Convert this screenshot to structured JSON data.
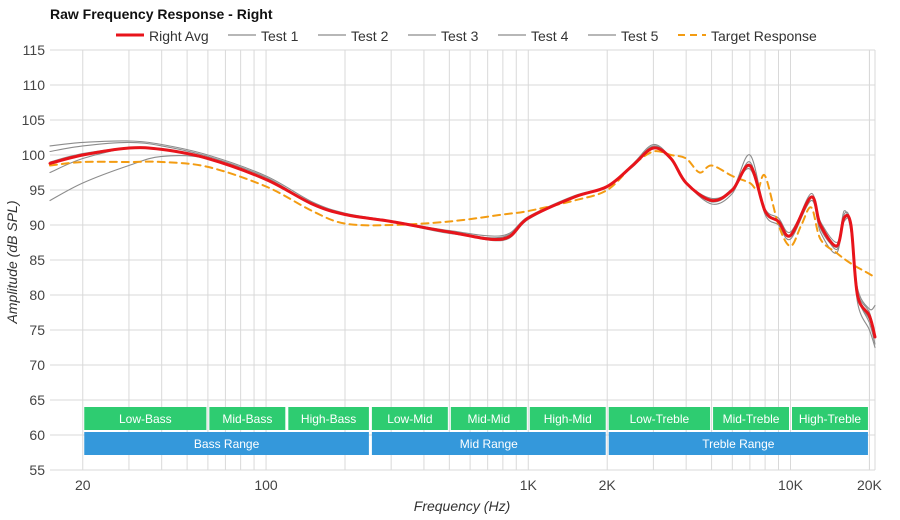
{
  "chart_data": {
    "type": "line",
    "title": "Raw Frequency Response - Right",
    "xlabel": "Frequency (Hz)",
    "ylabel": "Amplitude (dB SPL)",
    "x_scale": "log",
    "xlim": [
      15,
      21000
    ],
    "ylim": [
      55,
      115
    ],
    "grid": true,
    "legend_position": "top-center",
    "y_ticks": [
      115,
      110,
      105,
      100,
      95,
      90,
      85,
      80,
      75,
      70,
      65,
      60,
      55
    ],
    "x_ticks": [
      {
        "value": 20,
        "label": "20"
      },
      {
        "value": 100,
        "label": "100"
      },
      {
        "value": 1000,
        "label": "1K"
      },
      {
        "value": 2000,
        "label": "2K"
      },
      {
        "value": 10000,
        "label": "10K"
      },
      {
        "value": 20000,
        "label": "20K"
      }
    ],
    "series": [
      {
        "name": "Right Avg",
        "color": "#e8141b",
        "style": "solid",
        "emphasis": true,
        "x": [
          15,
          20,
          30,
          40,
          60,
          100,
          150,
          200,
          300,
          500,
          800,
          1000,
          1500,
          2000,
          2500,
          3000,
          3500,
          4000,
          5000,
          6000,
          7000,
          8000,
          9000,
          10000,
          12000,
          13000,
          15000,
          16000,
          17000,
          18000,
          20000,
          21000
        ],
        "y": [
          98.8,
          100.0,
          101.0,
          100.8,
          99.5,
          96.5,
          93.0,
          91.5,
          90.5,
          89.0,
          88.0,
          91.0,
          94.0,
          95.5,
          98.5,
          101.0,
          99.5,
          96.0,
          93.5,
          95.0,
          98.5,
          92.0,
          90.5,
          88.5,
          94.0,
          90.0,
          87.0,
          91.0,
          90.0,
          80.0,
          77.0,
          74.0
        ]
      },
      {
        "name": "Test 1",
        "color": "#8c8c8c",
        "style": "solid",
        "x": [
          15,
          20,
          30,
          40,
          60,
          100,
          150,
          200,
          300,
          500,
          800,
          1000,
          1500,
          2000,
          2500,
          3000,
          3500,
          4000,
          5000,
          6000,
          7000,
          8000,
          9000,
          10000,
          12000,
          13000,
          15000,
          16000,
          17000,
          18000,
          20000,
          21000
        ],
        "y": [
          97.5,
          99.5,
          101.0,
          100.8,
          99.5,
          96.5,
          93.0,
          91.5,
          90.5,
          89.0,
          88.2,
          91.0,
          94.0,
          95.5,
          98.5,
          101.3,
          99.5,
          96.0,
          93.3,
          95.0,
          100.0,
          92.0,
          90.5,
          88.5,
          94.5,
          89.5,
          87.0,
          92.0,
          89.0,
          80.0,
          76.0,
          73.0
        ]
      },
      {
        "name": "Test 2",
        "color": "#8c8c8c",
        "style": "solid",
        "x": [
          15,
          20,
          30,
          40,
          60,
          100,
          150,
          200,
          300,
          500,
          800,
          1000,
          1500,
          2000,
          2500,
          3000,
          3500,
          4000,
          5000,
          6000,
          7000,
          8000,
          9000,
          10000,
          12000,
          13000,
          15000,
          16000,
          17000,
          18000,
          20000,
          21000
        ],
        "y": [
          100.5,
          101.3,
          101.8,
          101.3,
          99.8,
          96.8,
          93.0,
          91.5,
          90.5,
          88.8,
          88.3,
          91.0,
          94.0,
          95.5,
          98.7,
          101.5,
          99.5,
          96.0,
          93.5,
          95.2,
          98.0,
          92.0,
          90.5,
          88.5,
          93.5,
          90.0,
          86.5,
          91.0,
          89.5,
          80.5,
          77.5,
          74.0
        ]
      },
      {
        "name": "Test 3",
        "color": "#8c8c8c",
        "style": "solid",
        "x": [
          15,
          20,
          30,
          40,
          60,
          100,
          150,
          200,
          300,
          500,
          800,
          1000,
          1500,
          2000,
          2500,
          3000,
          3500,
          4000,
          5000,
          6000,
          7000,
          8000,
          9000,
          10000,
          12000,
          13000,
          15000,
          16000,
          17000,
          18000,
          20000,
          21000
        ],
        "y": [
          101.3,
          101.8,
          102.0,
          101.5,
          100.0,
          97.0,
          93.3,
          91.7,
          90.6,
          89.2,
          88.5,
          91.2,
          94.2,
          95.5,
          98.5,
          101.2,
          99.3,
          96.0,
          93.8,
          95.0,
          98.3,
          92.3,
          91.0,
          89.0,
          94.0,
          90.5,
          87.5,
          90.5,
          90.0,
          81.0,
          78.0,
          78.5
        ]
      },
      {
        "name": "Test 4",
        "color": "#8c8c8c",
        "style": "solid",
        "x": [
          15,
          20,
          30,
          40,
          60,
          100,
          150,
          200,
          300,
          500,
          800,
          1000,
          1500,
          2000,
          2500,
          3000,
          3500,
          4000,
          5000,
          6000,
          7000,
          8000,
          9000,
          10000,
          12000,
          13000,
          15000,
          16000,
          17000,
          18000,
          20000,
          21000
        ],
        "y": [
          93.5,
          96.0,
          98.5,
          99.8,
          99.5,
          96.5,
          93.0,
          91.5,
          90.5,
          89.0,
          87.8,
          90.8,
          94.0,
          95.5,
          98.3,
          101.0,
          99.5,
          96.0,
          93.0,
          94.5,
          99.0,
          91.5,
          90.0,
          88.0,
          93.5,
          89.0,
          86.0,
          91.5,
          90.0,
          79.0,
          75.0,
          72.5
        ]
      },
      {
        "name": "Test 5",
        "color": "#8c8c8c",
        "style": "solid",
        "x": [
          15,
          20,
          30,
          40,
          60,
          100,
          150,
          200,
          300,
          500,
          800,
          1000,
          1500,
          2000,
          2500,
          3000,
          3500,
          4000,
          5000,
          6000,
          7000,
          8000,
          9000,
          10000,
          12000,
          13000,
          15000,
          16000,
          17000,
          18000,
          20000,
          21000
        ],
        "y": [
          99.0,
          100.2,
          101.0,
          100.9,
          99.6,
          96.6,
          93.1,
          91.6,
          90.5,
          89.0,
          88.0,
          91.0,
          94.0,
          95.5,
          98.5,
          101.1,
          99.5,
          96.0,
          93.4,
          95.0,
          98.5,
          92.0,
          90.6,
          88.6,
          94.0,
          90.0,
          86.8,
          91.0,
          90.0,
          80.0,
          76.5,
          74.0
        ]
      },
      {
        "name": "Target Response",
        "color": "#f39c12",
        "style": "dashed",
        "x": [
          15,
          20,
          30,
          40,
          60,
          100,
          150,
          200,
          300,
          500,
          800,
          1000,
          1500,
          2000,
          2500,
          3000,
          3500,
          4000,
          4500,
          5000,
          6000,
          7000,
          7500,
          8000,
          9000,
          10000,
          11000,
          12000,
          13000,
          15000,
          17000,
          20000,
          21000
        ],
        "y": [
          98.5,
          99.0,
          99.0,
          99.0,
          98.3,
          95.5,
          92.0,
          90.2,
          90.0,
          90.5,
          91.5,
          92.0,
          93.5,
          95.0,
          98.5,
          100.5,
          100.0,
          99.5,
          97.5,
          98.5,
          97.0,
          96.0,
          95.0,
          97.0,
          90.0,
          87.0,
          90.0,
          92.5,
          88.0,
          86.0,
          84.5,
          83.0,
          82.5
        ]
      }
    ],
    "bands": [
      {
        "label": "Low-Bass",
        "from": 20,
        "to": 60,
        "row": 1,
        "color": "#2ecc71"
      },
      {
        "label": "Mid-Bass",
        "from": 60,
        "to": 120,
        "row": 1,
        "color": "#2ecc71"
      },
      {
        "label": "High-Bass",
        "from": 120,
        "to": 250,
        "row": 1,
        "color": "#2ecc71"
      },
      {
        "label": "Low-Mid",
        "from": 250,
        "to": 500,
        "row": 1,
        "color": "#2ecc71"
      },
      {
        "label": "Mid-Mid",
        "from": 500,
        "to": 1000,
        "row": 1,
        "color": "#2ecc71"
      },
      {
        "label": "High-Mid",
        "from": 1000,
        "to": 2000,
        "row": 1,
        "color": "#2ecc71"
      },
      {
        "label": "Low-Treble",
        "from": 2000,
        "to": 5000,
        "row": 1,
        "color": "#2ecc71"
      },
      {
        "label": "Mid-Treble",
        "from": 5000,
        "to": 10000,
        "row": 1,
        "color": "#2ecc71"
      },
      {
        "label": "High-Treble",
        "from": 10000,
        "to": 20000,
        "row": 1,
        "color": "#2ecc71"
      },
      {
        "label": "Bass Range",
        "from": 20,
        "to": 250,
        "row": 2,
        "color": "#3498db"
      },
      {
        "label": "Mid Range",
        "from": 250,
        "to": 2000,
        "row": 2,
        "color": "#3498db"
      },
      {
        "label": "Treble Range",
        "from": 2000,
        "to": 20000,
        "row": 2,
        "color": "#3498db"
      }
    ]
  }
}
